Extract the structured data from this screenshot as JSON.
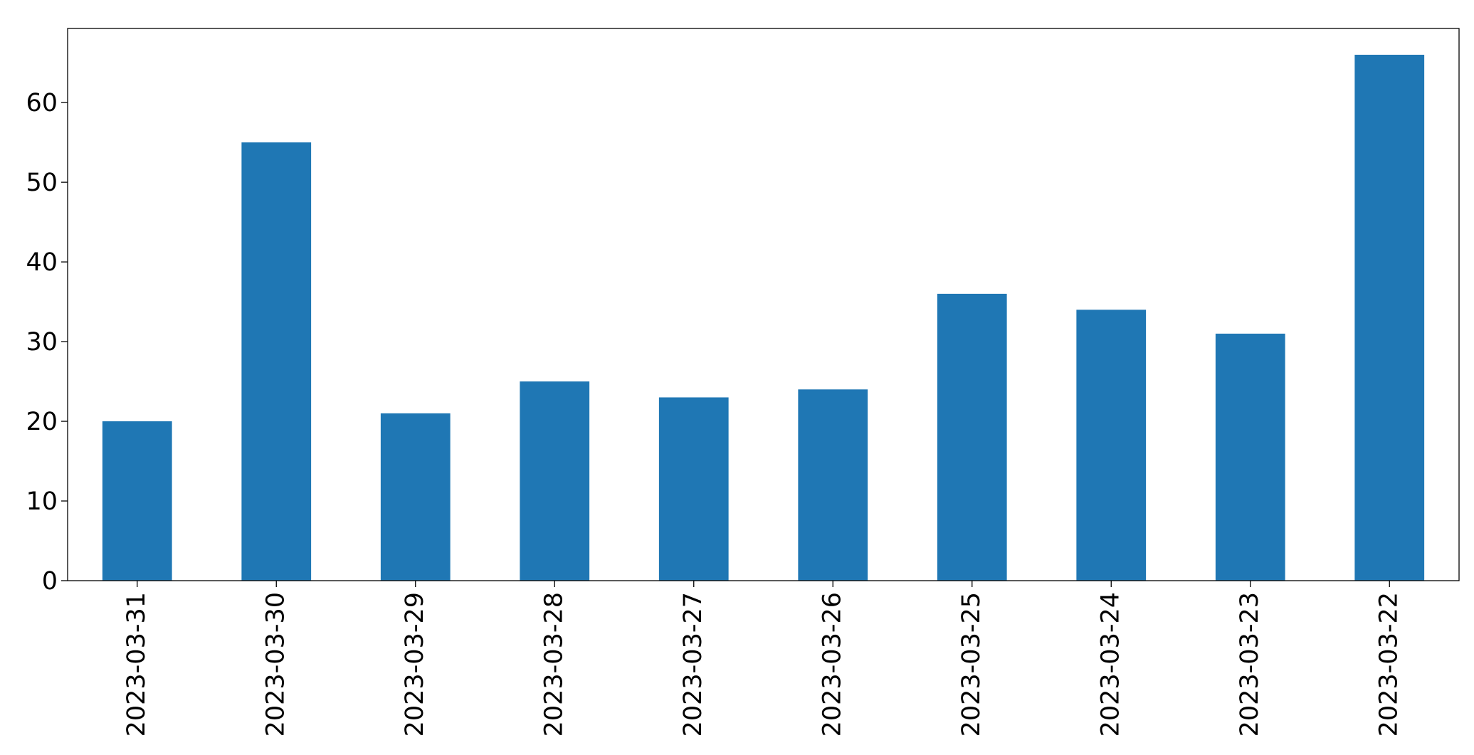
{
  "chart_data": {
    "type": "bar",
    "categories": [
      "2023-03-31",
      "2023-03-30",
      "2023-03-29",
      "2023-03-28",
      "2023-03-27",
      "2023-03-26",
      "2023-03-25",
      "2023-03-24",
      "2023-03-23",
      "2023-03-22"
    ],
    "values": [
      20,
      55,
      21,
      25,
      23,
      24,
      36,
      34,
      31,
      66
    ],
    "color": "#1f77b4",
    "ylim": [
      0,
      69.3
    ],
    "yticks": [
      0,
      10,
      20,
      30,
      40,
      50,
      60
    ],
    "grid": false
  }
}
